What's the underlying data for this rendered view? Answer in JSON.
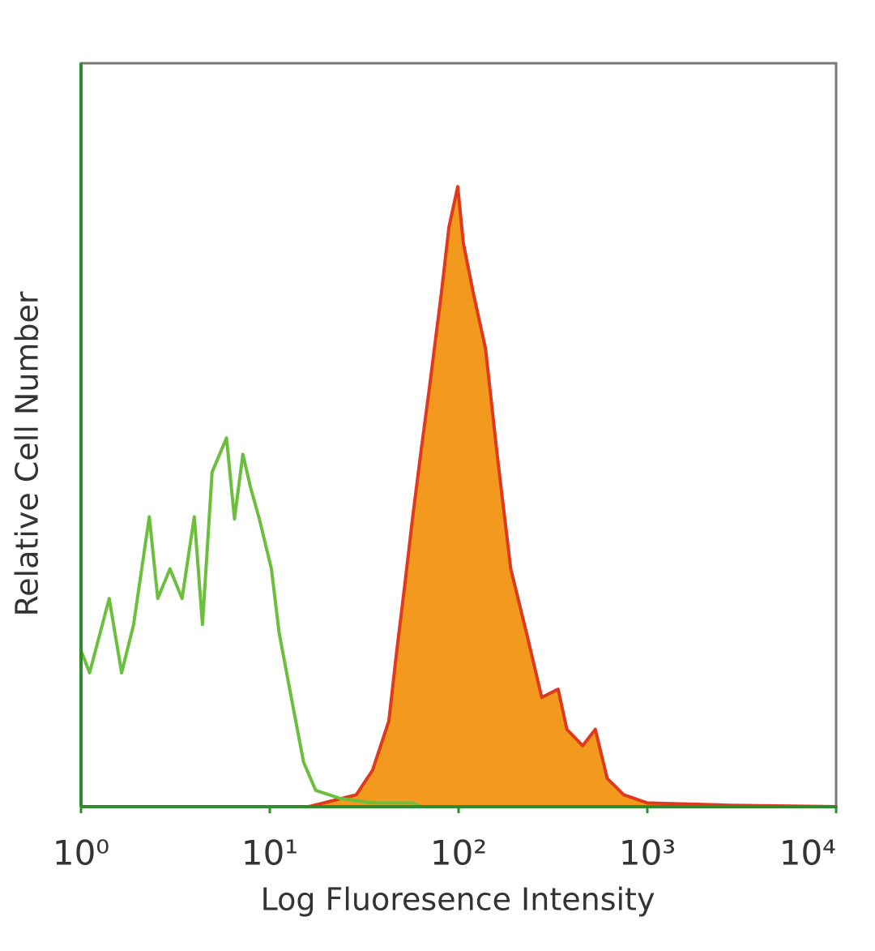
{
  "chart_data": {
    "type": "histogram-overlay",
    "xlabel": "Log Fluoresence Intensity",
    "ylabel": "Relative Cell Number",
    "xscale": "log",
    "xlim": [
      1,
      10000
    ],
    "xticks": [
      {
        "value": 1,
        "label": "10⁰"
      },
      {
        "value": 10,
        "label": "10¹"
      },
      {
        "value": 100,
        "label": "10²"
      },
      {
        "value": 1000,
        "label": "10³"
      },
      {
        "value": 10000,
        "label": "10⁴"
      }
    ],
    "ylim": [
      0,
      100
    ],
    "frame_color": "#777777",
    "axis_color": "#2e8b2e",
    "series": [
      {
        "color": "#e03a1e",
        "fill": "#f39a1e",
        "x": [
          16,
          28.7,
          35,
          42.7,
          47.1,
          52,
          57,
          63,
          69.8,
          81,
          89,
          99,
          106,
          120,
          139,
          160,
          189,
          229,
          276,
          337,
          375,
          454,
          530,
          613,
          750,
          1000,
          2700,
          10000
        ],
        "values": [
          0,
          1.6,
          4.9,
          11.5,
          21,
          30,
          38.7,
          47.4,
          56,
          69,
          78,
          83.4,
          75.8,
          69,
          61.6,
          47.4,
          32,
          23.4,
          14.7,
          15.8,
          10.4,
          8.2,
          10.4,
          3.8,
          1.6,
          0.5,
          0.2,
          0
        ]
      },
      {
        "color": "#6cbf3c",
        "fill": null,
        "x": [
          1,
          1.11,
          1.41,
          1.64,
          1.9,
          2.3,
          2.55,
          2.96,
          3.43,
          3.98,
          4.4,
          4.95,
          5.9,
          6.5,
          7.2,
          7.9,
          8.8,
          10.2,
          11.2,
          13,
          15.1,
          17.5,
          23.6,
          35,
          57,
          63
        ],
        "values": [
          21,
          18,
          28,
          18,
          24.5,
          39,
          28,
          32,
          28,
          39,
          24.5,
          45,
          49.6,
          38.7,
          47.4,
          43,
          38.7,
          32,
          23.4,
          14.7,
          6,
          2.2,
          1.1,
          0.5,
          0.5,
          0
        ]
      }
    ]
  }
}
